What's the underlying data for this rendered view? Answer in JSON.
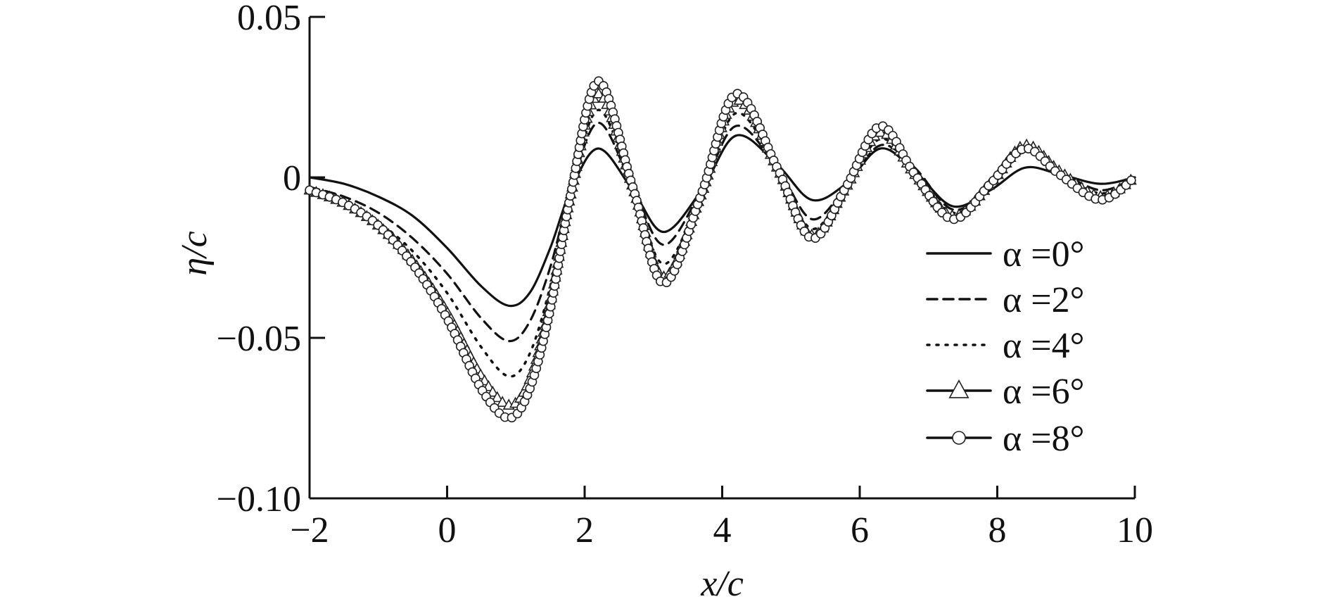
{
  "chart_data": {
    "type": "line",
    "title": "",
    "xlabel": "x/c",
    "ylabel": "η/c",
    "xlim": [
      -2,
      10
    ],
    "ylim": [
      -0.1,
      0.05
    ],
    "x_ticks": [
      -2,
      0,
      2,
      4,
      6,
      8,
      10
    ],
    "x_tick_labels": [
      "−2",
      "0",
      "2",
      "4",
      "6",
      "8",
      "10"
    ],
    "y_ticks": [
      0.05,
      0,
      -0.05,
      -0.1
    ],
    "y_tick_labels": [
      "0.05",
      "0",
      "−0.05",
      "−0.10"
    ],
    "grid": false,
    "legend_position": "right",
    "series": [
      {
        "name": "α =0°",
        "style": "solid",
        "marker": "none",
        "x": [
          -2,
          -1.5,
          -1,
          -0.5,
          0,
          0.5,
          0.9,
          1.2,
          1.5,
          1.8,
          2.2,
          2.7,
          3.15,
          3.7,
          4.2,
          4.8,
          5.3,
          5.8,
          6.3,
          6.8,
          7.35,
          7.9,
          8.4,
          8.9,
          9.5,
          10
        ],
        "y": [
          0.0,
          -0.002,
          -0.006,
          -0.012,
          -0.022,
          -0.034,
          -0.04,
          -0.036,
          -0.022,
          -0.004,
          0.009,
          -0.004,
          -0.017,
          -0.004,
          0.013,
          0.004,
          -0.007,
          -0.002,
          0.009,
          0.002,
          -0.009,
          -0.004,
          0.003,
          0.001,
          -0.002,
          0.0
        ]
      },
      {
        "name": "α =2°",
        "style": "dashed",
        "marker": "none",
        "x": [
          -2,
          -1.5,
          -1,
          -0.5,
          0,
          0.5,
          0.9,
          1.2,
          1.5,
          1.8,
          2.2,
          2.7,
          3.15,
          3.7,
          4.2,
          4.8,
          5.3,
          5.8,
          6.3,
          6.8,
          7.35,
          7.9,
          8.4,
          8.9,
          9.5,
          10
        ],
        "y": [
          -0.003,
          -0.006,
          -0.011,
          -0.019,
          -0.03,
          -0.044,
          -0.051,
          -0.045,
          -0.028,
          -0.004,
          0.017,
          -0.003,
          -0.021,
          -0.004,
          0.016,
          0.003,
          -0.013,
          -0.003,
          0.01,
          0.003,
          -0.01,
          -0.003,
          0.008,
          0.002,
          -0.004,
          0.0
        ]
      },
      {
        "name": "α =4°",
        "style": "dotted",
        "marker": "none",
        "x": [
          -2,
          -1.5,
          -1,
          -0.5,
          0,
          0.5,
          0.9,
          1.2,
          1.5,
          1.8,
          2.2,
          2.7,
          3.15,
          3.7,
          4.2,
          4.8,
          5.3,
          5.8,
          6.3,
          6.8,
          7.35,
          7.9,
          8.4,
          8.9,
          9.5,
          10
        ],
        "y": [
          -0.004,
          -0.008,
          -0.014,
          -0.023,
          -0.036,
          -0.053,
          -0.062,
          -0.055,
          -0.034,
          -0.005,
          0.021,
          -0.003,
          -0.027,
          -0.005,
          0.02,
          0.003,
          -0.016,
          -0.003,
          0.012,
          0.002,
          -0.011,
          -0.003,
          0.009,
          0.002,
          -0.005,
          0.0
        ]
      },
      {
        "name": "α =6°",
        "style": "solid",
        "marker": "triangle",
        "x": [
          -2,
          -1.5,
          -1,
          -0.5,
          0,
          0.5,
          0.9,
          1.2,
          1.5,
          1.8,
          2.2,
          2.7,
          3.15,
          3.7,
          4.2,
          4.8,
          5.3,
          5.8,
          6.3,
          6.8,
          7.35,
          7.9,
          8.4,
          8.9,
          9.5,
          10
        ],
        "y": [
          -0.004,
          -0.008,
          -0.015,
          -0.026,
          -0.042,
          -0.062,
          -0.071,
          -0.063,
          -0.039,
          -0.005,
          0.026,
          -0.003,
          -0.031,
          -0.005,
          0.024,
          0.003,
          -0.018,
          -0.003,
          0.014,
          0.001,
          -0.012,
          -0.002,
          0.01,
          0.002,
          -0.006,
          0.0
        ]
      },
      {
        "name": "α =8°",
        "style": "solid",
        "marker": "circle",
        "x": [
          -2,
          -1.5,
          -1,
          -0.5,
          0,
          0.5,
          0.9,
          1.2,
          1.5,
          1.8,
          2.2,
          2.7,
          3.15,
          3.7,
          4.2,
          4.8,
          5.3,
          5.8,
          6.3,
          6.8,
          7.35,
          7.9,
          8.4,
          8.9,
          9.5,
          10
        ],
        "y": [
          -0.004,
          -0.008,
          -0.015,
          -0.027,
          -0.044,
          -0.066,
          -0.075,
          -0.066,
          -0.041,
          -0.005,
          0.03,
          -0.003,
          -0.033,
          -0.005,
          0.026,
          0.003,
          -0.019,
          -0.003,
          0.016,
          0.001,
          -0.013,
          -0.002,
          0.009,
          0.001,
          -0.007,
          0.0
        ]
      }
    ]
  }
}
